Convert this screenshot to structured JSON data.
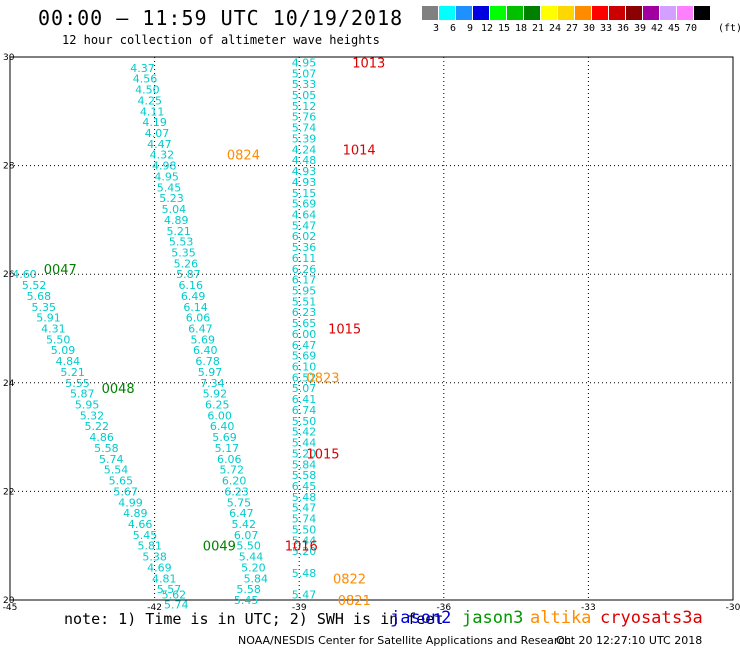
{
  "header": {
    "title": "00:00 – 11:59 UTC 10/19/2018",
    "subtitle": "12 hour collection of altimeter wave heights"
  },
  "legend": {
    "unit": "(ft)",
    "bins": [
      {
        "label": "3",
        "color": "#808080"
      },
      {
        "label": "6",
        "color": "#00ffff"
      },
      {
        "label": "9",
        "color": "#1e90ff"
      },
      {
        "label": "12",
        "color": "#0000e0"
      },
      {
        "label": "15",
        "color": "#00ff00"
      },
      {
        "label": "18",
        "color": "#00c000"
      },
      {
        "label": "21",
        "color": "#008000"
      },
      {
        "label": "24",
        "color": "#ffff00"
      },
      {
        "label": "27",
        "color": "#ffd700"
      },
      {
        "label": "30",
        "color": "#ff8c00"
      },
      {
        "label": "33",
        "color": "#ff0000"
      },
      {
        "label": "36",
        "color": "#cc0000"
      },
      {
        "label": "39",
        "color": "#8b0000"
      },
      {
        "label": "42",
        "color": "#a000a0"
      },
      {
        "label": "45",
        "color": "#d3a0ff"
      },
      {
        "label": "70",
        "color": "#ff80ff"
      },
      {
        "label": "",
        "color": "#000000"
      }
    ]
  },
  "footer": {
    "note": "note: 1) Time is in UTC; 2) SWH is in feet",
    "missions": [
      {
        "name": "jason2",
        "color": "#0000dd"
      },
      {
        "name": "jason3",
        "color": "#009900"
      },
      {
        "name": "altika",
        "color": "#ff8c00"
      },
      {
        "name": "cryosat",
        "color": "#dd0000"
      },
      {
        "name": "s3a",
        "color": "#dd0000"
      }
    ],
    "credit": "NOAA/NESDIS Center for Satellite Applications and Research",
    "timestamp": "Oct 20 12:27:10 UTC 2018"
  },
  "chart_data": {
    "type": "scatter",
    "xlim": [
      -45,
      -30
    ],
    "ylim": [
      20,
      30
    ],
    "x_ticks": [
      "-45",
      "-42",
      "-39",
      "-36",
      "-33",
      "-30"
    ],
    "y_ticks": [
      "20",
      "22",
      "24",
      "26",
      "28",
      "30"
    ],
    "grid": true,
    "value_color": "#00cccc",
    "series": [
      {
        "x": [
          -42.25,
          -42.2,
          -42.15,
          -42.1,
          -42.05,
          -42.0,
          -41.95,
          -41.9,
          -41.85,
          -41.8,
          -41.75,
          -41.7,
          -41.65,
          -41.6,
          -41.55,
          -41.5,
          -41.45,
          -41.4,
          -41.35,
          -41.3,
          -41.25,
          -41.2,
          -41.15,
          -41.1,
          -41.05,
          -41.0,
          -40.95,
          -40.9,
          -40.85,
          -40.8,
          -40.75,
          -40.7,
          -40.65,
          -40.6,
          -40.55,
          -40.5,
          -40.45,
          -40.4,
          -40.35,
          -40.3,
          -40.25,
          -40.2,
          -40.15,
          -40.1,
          -40.05,
          -40.0,
          -39.95,
          -39.9,
          -40.05,
          -40.1
        ],
        "y": [
          29.8,
          29.6,
          29.4,
          29.2,
          29.0,
          28.8,
          28.6,
          28.4,
          28.2,
          28.0,
          27.8,
          27.6,
          27.4,
          27.2,
          27.0,
          26.8,
          26.6,
          26.4,
          26.2,
          26.0,
          25.8,
          25.6,
          25.4,
          25.2,
          25.0,
          24.8,
          24.6,
          24.4,
          24.2,
          24.0,
          23.8,
          23.6,
          23.4,
          23.2,
          23.0,
          22.8,
          22.6,
          22.4,
          22.2,
          22.0,
          21.8,
          21.6,
          21.4,
          21.2,
          21.0,
          20.8,
          20.6,
          20.4,
          20.2,
          20.0
        ],
        "values": [
          "4.37",
          "4.56",
          "4.50",
          "4.25",
          "4.11",
          "4.19",
          "4.07",
          "4.47",
          "4.32",
          "4.98",
          "4.95",
          "5.45",
          "5.23",
          "5.04",
          "4.89",
          "5.21",
          "5.53",
          "5.35",
          "5.26",
          "5.87",
          "6.16",
          "6.49",
          "6.14",
          "6.06",
          "6.47",
          "5.69",
          "6.40",
          "6.78",
          "5.97",
          "7.34",
          "5.92",
          "6.25",
          "6.00",
          "6.40",
          "5.69",
          "5.17",
          "6.06",
          "5.72",
          "6.20",
          "6.23",
          "5.75",
          "6.47",
          "5.42",
          "6.07",
          "5.50",
          "5.44",
          "5.20",
          "5.84",
          "5.58",
          "5.45"
        ]
      },
      {
        "x": [
          -38.9,
          -38.9,
          -38.9,
          -38.9,
          -38.9,
          -38.9,
          -38.9,
          -38.9,
          -38.9,
          -38.9,
          -38.9,
          -38.9,
          -38.9,
          -38.9,
          -38.9,
          -38.9,
          -38.9,
          -38.9,
          -38.9,
          -38.9,
          -38.9,
          -38.9,
          -38.9,
          -38.9,
          -38.9,
          -38.9,
          -38.9,
          -38.9,
          -38.9,
          -38.9,
          -38.9,
          -38.9,
          -38.9,
          -38.9,
          -38.9,
          -38.9,
          -38.9,
          -38.9,
          -38.9,
          -38.9,
          -38.9,
          -38.9,
          -38.9,
          -38.9,
          -38.9,
          -38.9,
          -38.9,
          -38.9
        ],
        "y": [
          29.9,
          29.7,
          29.5,
          29.3,
          29.1,
          28.9,
          28.7,
          28.5,
          28.3,
          28.1,
          27.9,
          27.7,
          27.5,
          27.3,
          27.1,
          26.9,
          26.7,
          26.5,
          26.3,
          26.1,
          25.9,
          25.7,
          25.5,
          25.3,
          25.1,
          24.9,
          24.7,
          24.5,
          24.3,
          24.1,
          23.9,
          23.7,
          23.5,
          23.3,
          23.1,
          22.9,
          22.7,
          22.5,
          22.3,
          22.1,
          21.9,
          21.7,
          21.5,
          21.3,
          21.1,
          20.9,
          20.5,
          20.1
        ],
        "values": [
          "4.95",
          "5.07",
          "5.33",
          "5.05",
          "5.12",
          "5.76",
          "5.74",
          "5.39",
          "4.24",
          "4.48",
          "4.93",
          "4.93",
          "5.15",
          "5.69",
          "4.64",
          "5.47",
          "6.02",
          "5.36",
          "6.11",
          "6.26",
          "6.17",
          "5.95",
          "5.51",
          "6.23",
          "5.65",
          "6.00",
          "6.47",
          "5.69",
          "6.10",
          "6.52",
          "5.07",
          "6.41",
          "6.74",
          "5.50",
          "5.42",
          "5.44",
          "5.20",
          "5.84",
          "5.58",
          "6.45",
          "5.48",
          "5.47",
          "5.74",
          "5.50",
          "5.44",
          "5.20",
          "5.48",
          "5.47"
        ]
      },
      {
        "x": [
          -44.7,
          -44.5,
          -44.4,
          -44.3,
          -44.2,
          -44.1,
          -44.0,
          -43.9,
          -43.8,
          -43.7,
          -43.6,
          -43.5,
          -43.4,
          -43.3,
          -43.2,
          -43.1,
          -43.0,
          -42.9,
          -42.8,
          -42.7,
          -42.6,
          -42.5,
          -42.4,
          -42.3,
          -42.2,
          -42.1,
          -42.0,
          -41.9,
          -41.8,
          -41.7
        ],
        "y": [
          26.0,
          25.8,
          25.6,
          25.4,
          25.2,
          25.0,
          24.8,
          24.6,
          24.4,
          24.2,
          24.0,
          23.8,
          23.6,
          23.4,
          23.2,
          23.0,
          22.8,
          22.6,
          22.4,
          22.2,
          22.0,
          21.8,
          21.6,
          21.4,
          21.2,
          21.0,
          20.8,
          20.6,
          20.4,
          20.2
        ],
        "values": [
          "4.60",
          "5.52",
          "5.68",
          "5.35",
          "5.91",
          "4.31",
          "5.50",
          "5.09",
          "4.84",
          "5.21",
          "5.55",
          "5.87",
          "5.95",
          "5.32",
          "5.22",
          "4.86",
          "5.58",
          "5.74",
          "5.54",
          "5.65",
          "5.67",
          "4.99",
          "4.89",
          "4.66",
          "5.45",
          "5.81",
          "5.38",
          "4.69",
          "4.81",
          "5.57"
        ]
      }
    ],
    "tail_values": [
      "5.62",
      "5.74"
    ],
    "pass_labels": [
      {
        "text": "1013",
        "x": -37.9,
        "y": 29.9,
        "color": "#dd0000"
      },
      {
        "text": "1014",
        "x": -38.1,
        "y": 28.3,
        "color": "#dd0000"
      },
      {
        "text": "0824",
        "x": -40.5,
        "y": 28.2,
        "color": "#ff8c00"
      },
      {
        "text": "0047",
        "x": -44.3,
        "y": 26.1,
        "color": "#008000"
      },
      {
        "text": "1015",
        "x": -38.4,
        "y": 25.0,
        "color": "#dd0000"
      },
      {
        "text": "0823",
        "x": -38.85,
        "y": 24.1,
        "color": "#ff8c00"
      },
      {
        "text": "0048",
        "x": -43.1,
        "y": 23.9,
        "color": "#008000"
      },
      {
        "text": "1015",
        "x": -38.85,
        "y": 22.7,
        "color": "#dd0000"
      },
      {
        "text": "0049",
        "x": -41.0,
        "y": 21.0,
        "color": "#008000"
      },
      {
        "text": "1016",
        "x": -39.3,
        "y": 21.0,
        "color": "#dd0000"
      },
      {
        "text": "0822",
        "x": -38.3,
        "y": 20.4,
        "color": "#ff8c00"
      },
      {
        "text": "0821",
        "x": -38.2,
        "y": 20.0,
        "color": "#ff8c00"
      }
    ]
  }
}
